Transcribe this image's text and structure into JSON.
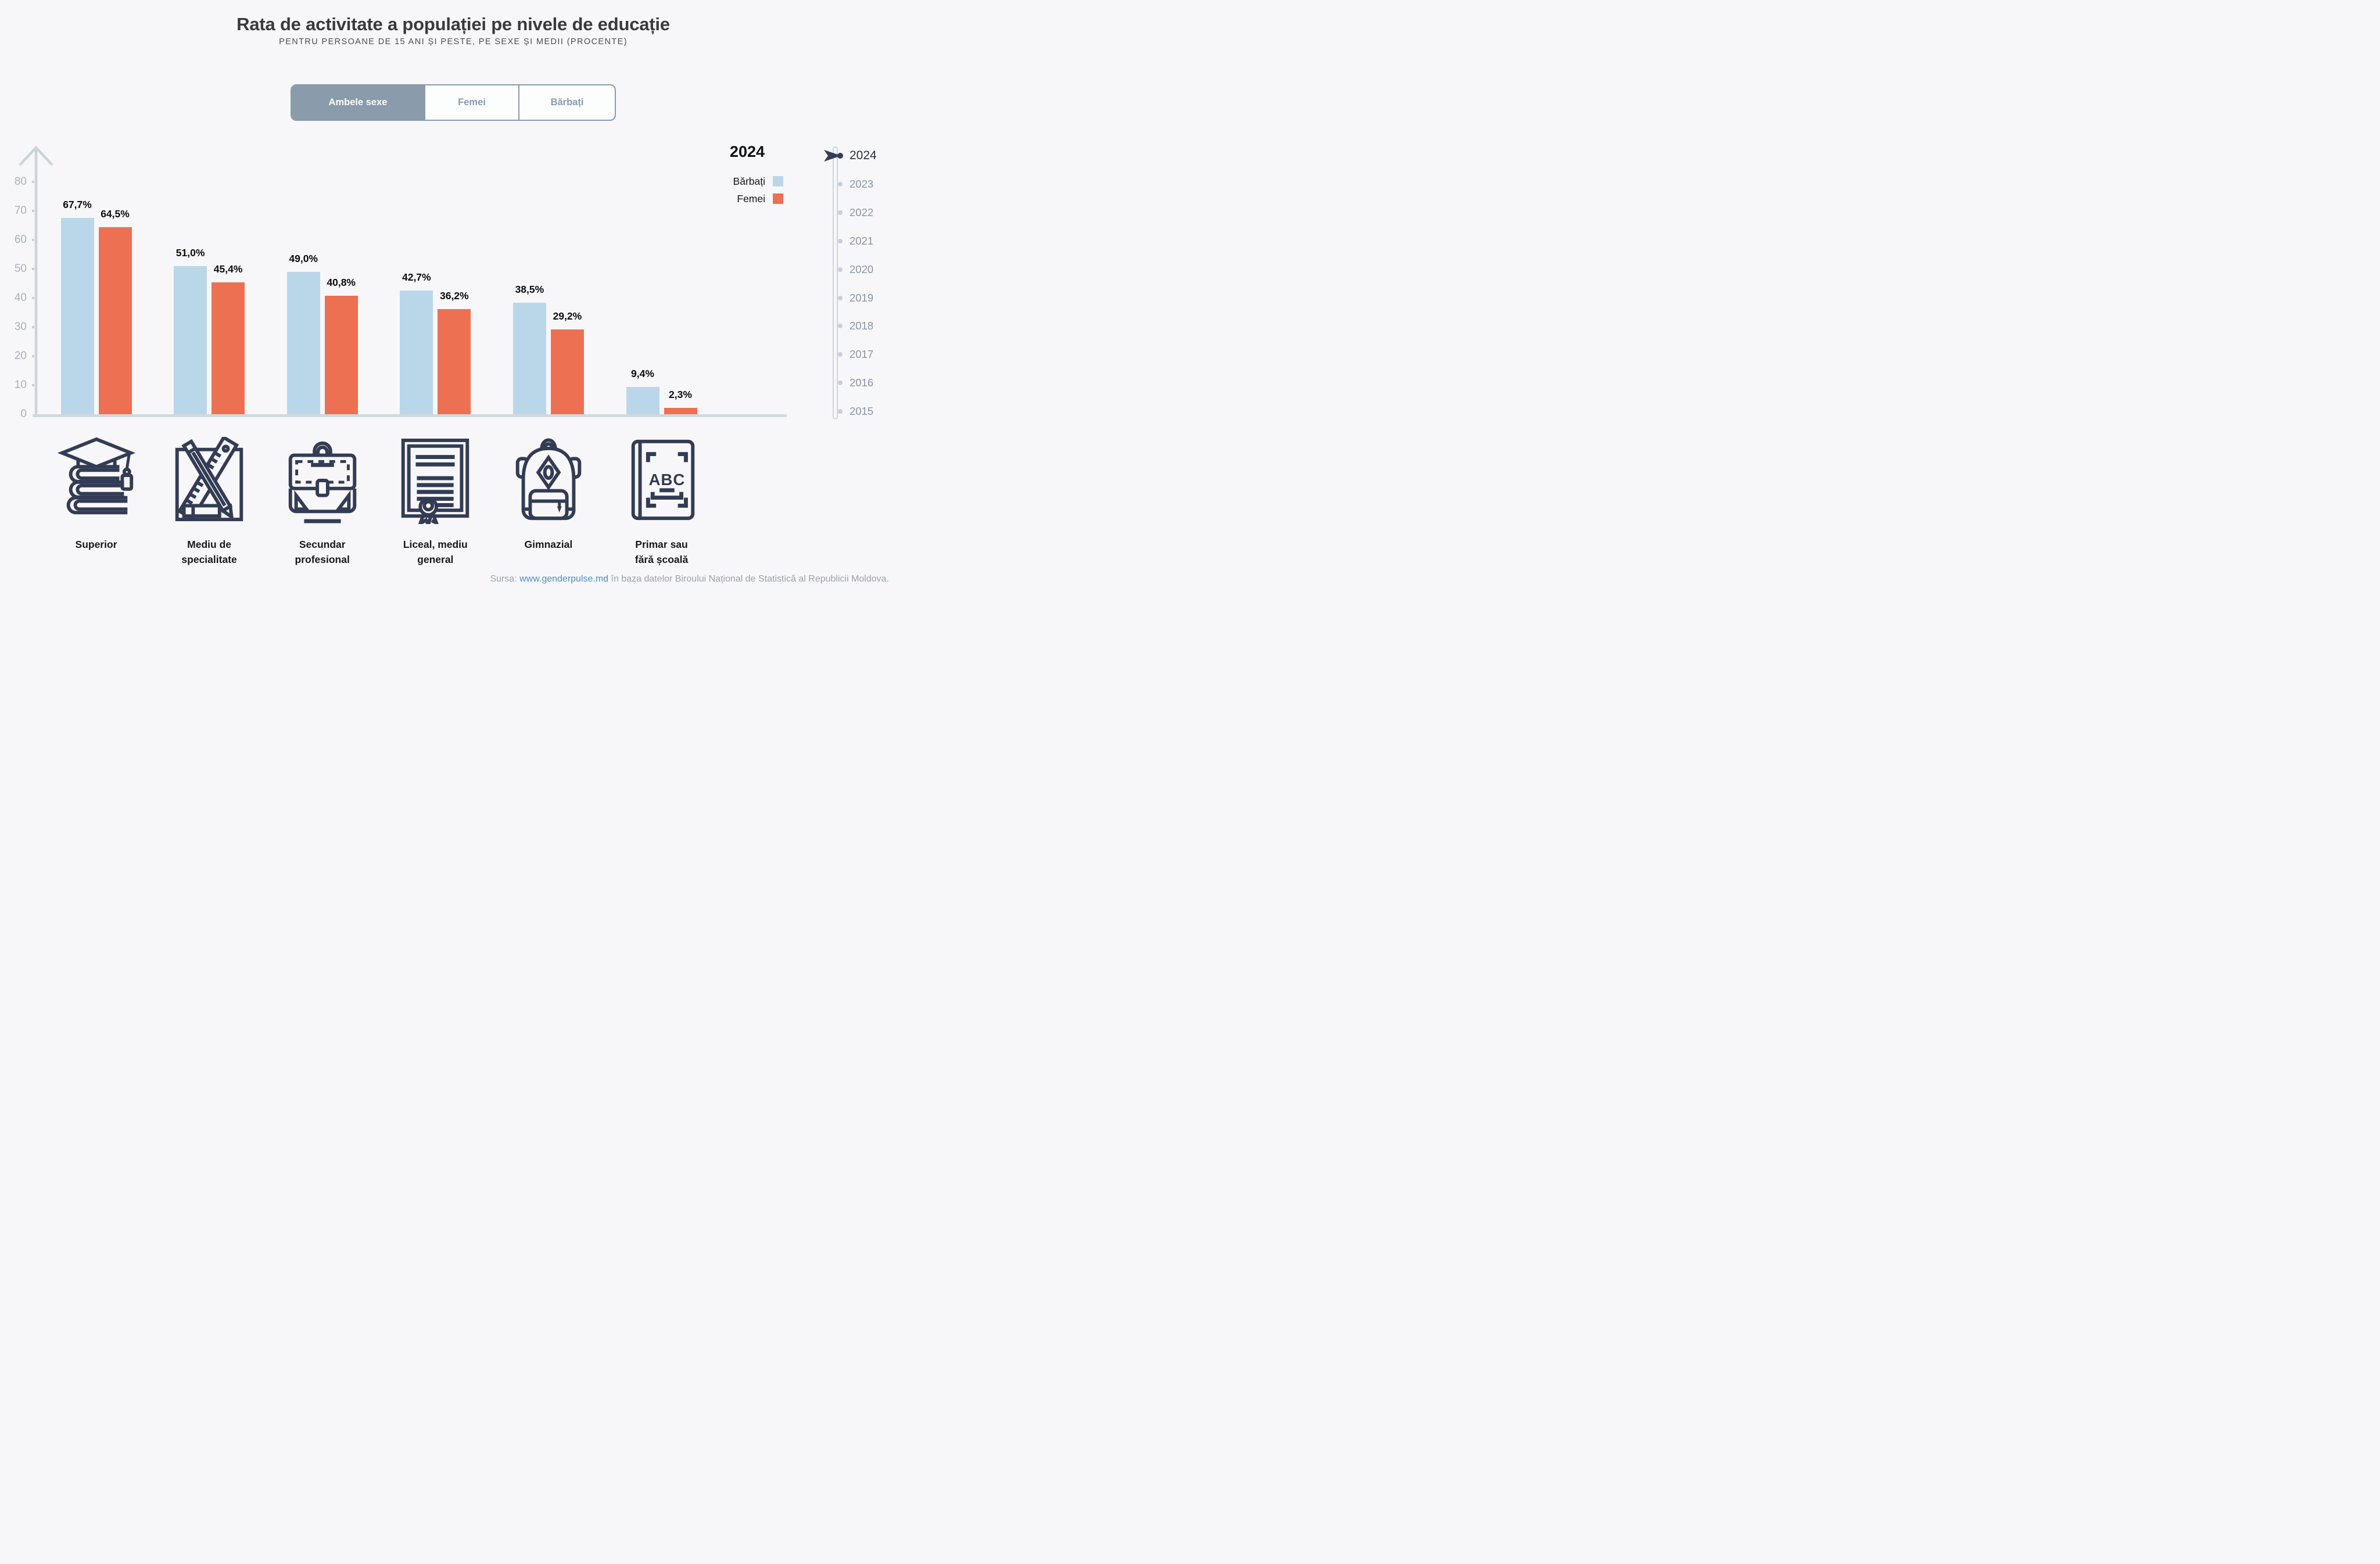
{
  "page": {
    "background": "#f7f7f9"
  },
  "header": {
    "title": "Rata de activitate a populației pe nivele de educație",
    "subtitle": "PENTRU PERSOANE DE 15 ANI ȘI PESTE, PE SEXE ȘI MEDII (PROCENTE)"
  },
  "tabs": [
    {
      "label": "Ambele sexe",
      "active": true
    },
    {
      "label": "Femei",
      "active": false
    },
    {
      "label": "Bărbați",
      "active": false
    }
  ],
  "legend": {
    "year": "2024",
    "entries": [
      {
        "label": "Bărbați",
        "color": "#bad7ea"
      },
      {
        "label": "Femei",
        "color": "#ee7052"
      }
    ]
  },
  "timeline": {
    "years": [
      "2024",
      "2023",
      "2022",
      "2021",
      "2020",
      "2019",
      "2018",
      "2017",
      "2016",
      "2015"
    ],
    "active_year": "2024"
  },
  "chart_data": {
    "type": "bar",
    "title": "Rata de activitate a populației pe nivele de educație",
    "subtitle": "Pentru persoane de 15 ani și peste, pe sexe și medii (procente)",
    "categories": [
      "Superior",
      "Mediu de specialitate",
      "Secundar profesional",
      "Liceal, mediu general",
      "Gimnazial",
      "Primar sau fără școală"
    ],
    "category_label_lines": [
      [
        "Superior"
      ],
      [
        "Mediu de",
        "specialitate"
      ],
      [
        "Secundar",
        "profesional"
      ],
      [
        "Liceal, mediu",
        "general"
      ],
      [
        "Gimnazial"
      ],
      [
        "Primar sau",
        "fără școală"
      ]
    ],
    "category_icons": [
      "graduation-cap-books-icon",
      "ruler-pencil-icon",
      "briefcase-icon",
      "diploma-icon",
      "backpack-icon",
      "abc-book-icon"
    ],
    "series": [
      {
        "name": "Bărbați",
        "color": "#bad7ea",
        "values": [
          67.7,
          51.0,
          49.0,
          42.7,
          38.5,
          9.4
        ]
      },
      {
        "name": "Femei",
        "color": "#ee7052",
        "values": [
          64.5,
          45.4,
          40.8,
          36.2,
          29.2,
          2.3
        ]
      }
    ],
    "value_labels": [
      [
        "67,7%",
        "51,0%",
        "49,0%",
        "42,7%",
        "38,5%",
        "9,4%"
      ],
      [
        "64,5%",
        "45,4%",
        "40,8%",
        "36,2%",
        "29,2%",
        "2,3%"
      ]
    ],
    "ylabel": "",
    "xlabel": "",
    "yticks": [
      0,
      10,
      20,
      30,
      40,
      50,
      60,
      70,
      80
    ],
    "ylim": [
      0,
      87
    ],
    "grid": false,
    "legend_position": "top-right",
    "year_shown": "2024"
  },
  "footer": {
    "prefix": "Sursa: ",
    "link": "www.genderpulse.md",
    "suffix": " în baza datelor Biroului Național de Statistică al Republicii Moldova.",
    "link_color": "#4a8fc4"
  },
  "colors": {
    "background": "#f7f7f9",
    "bar_male": "#bad7ea",
    "bar_female": "#ee7052",
    "tab_slate": "#8a9bab",
    "axis_gray": "#ccd3d9",
    "icon_navy": "#333c54",
    "year_inactive": "#8b95a3",
    "year_active": "#2b3340"
  }
}
